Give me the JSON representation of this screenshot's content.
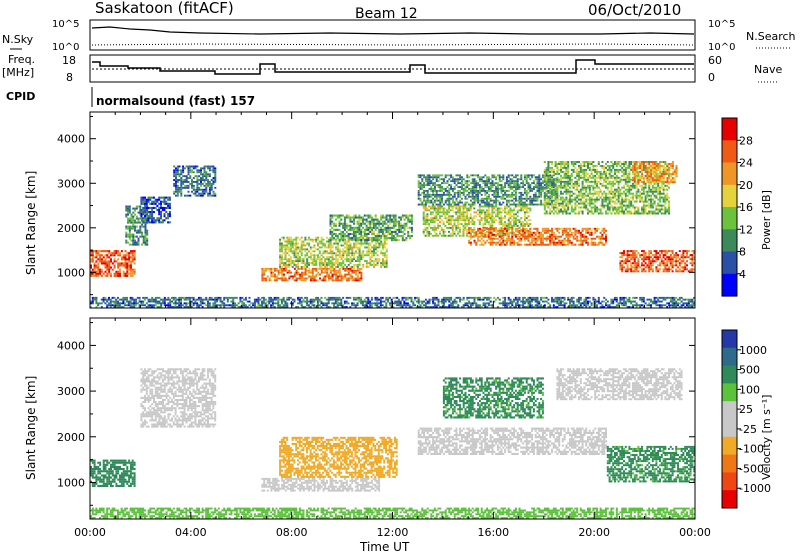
{
  "header": {
    "title": "Saskatoon (fitACF)",
    "beam": "Beam 12",
    "date": "06/Oct/2010"
  },
  "top_panels": {
    "nsky_label": "N.Sky",
    "nsky_ticks": [
      "10^5",
      "10^0"
    ],
    "nsearch_label": "N.Search",
    "nsearch_ticks": [
      "10^5",
      "10^0"
    ],
    "freq_label_1": "Freq.",
    "freq_label_2": "[MHz]",
    "freq_ticks": [
      "18",
      "8"
    ],
    "nave_label": "Nave",
    "nave_ticks": [
      "60",
      "0"
    ],
    "cpid_label": "CPID",
    "cpid_value": "normalsound (fast) 157"
  },
  "colors": {
    "power_scale": [
      "#0000ff",
      "#2a50a8",
      "#3c8a5a",
      "#6cc23c",
      "#e6d23c",
      "#f09628",
      "#f05a14",
      "#e60000"
    ],
    "velocity_scale": [
      "#2438a8",
      "#2e6a8c",
      "#2f8a5a",
      "#5cc23c",
      "#c8c8c8",
      "#c8c8c8",
      "#f0aa28",
      "#f07814",
      "#f04614",
      "#e60000"
    ]
  },
  "chart_data": [
    {
      "type": "heatmap",
      "title": "Power",
      "xlabel": "",
      "ylabel": "Slant Range [km]",
      "x_ticks": [
        "00:00",
        "04:00",
        "08:00",
        "12:00",
        "16:00",
        "20:00",
        "00:00"
      ],
      "y_ticks": [
        "1000",
        "2000",
        "3000",
        "4000"
      ],
      "ylim": [
        200,
        4600
      ],
      "colorbar_label": "Power [dB]",
      "colorbar_ticks": [
        "4",
        "8",
        "12",
        "16",
        "20",
        "24",
        "28"
      ],
      "regions": [
        {
          "t0": 0.0,
          "t1": 1.8,
          "r0": 900,
          "r1": 1500,
          "level": 26
        },
        {
          "t0": 1.4,
          "t1": 2.3,
          "r0": 1600,
          "r1": 2500,
          "level": 10
        },
        {
          "t0": 2.0,
          "t1": 3.2,
          "r0": 2100,
          "r1": 2700,
          "level": 6
        },
        {
          "t0": 3.3,
          "t1": 5.0,
          "r0": 2700,
          "r1": 3400,
          "level": 8
        },
        {
          "t0": 6.8,
          "t1": 10.8,
          "r0": 800,
          "r1": 1100,
          "level": 24
        },
        {
          "t0": 7.5,
          "t1": 11.8,
          "r0": 1100,
          "r1": 1800,
          "level": 16
        },
        {
          "t0": 9.5,
          "t1": 12.8,
          "r0": 1700,
          "r1": 2300,
          "level": 12
        },
        {
          "t0": 13.2,
          "t1": 17.5,
          "r0": 1800,
          "r1": 2500,
          "level": 16
        },
        {
          "t0": 15.0,
          "t1": 20.5,
          "r0": 1600,
          "r1": 2000,
          "level": 24
        },
        {
          "t0": 13.0,
          "t1": 18.5,
          "r0": 2500,
          "r1": 3200,
          "level": 10
        },
        {
          "t0": 18.0,
          "t1": 23.0,
          "r0": 2300,
          "r1": 3500,
          "level": 14
        },
        {
          "t0": 21.0,
          "t1": 24.0,
          "r0": 1000,
          "r1": 1500,
          "level": 26
        },
        {
          "t0": 21.5,
          "t1": 23.3,
          "r0": 3000,
          "r1": 3500,
          "level": 22
        },
        {
          "t0": 0.0,
          "t1": 24.0,
          "r0": 200,
          "r1": 450,
          "level": 8
        }
      ]
    },
    {
      "type": "heatmap",
      "title": "Velocity",
      "xlabel": "Time UT",
      "ylabel": "Slant Range [km]",
      "x_ticks": [
        "00:00",
        "04:00",
        "08:00",
        "12:00",
        "16:00",
        "20:00",
        "00:00"
      ],
      "y_ticks": [
        "1000",
        "2000",
        "3000",
        "4000"
      ],
      "ylim": [
        200,
        4600
      ],
      "colorbar_label": "Velocity [m s⁻¹]",
      "colorbar_ticks": [
        "1000",
        "500",
        "100",
        "25",
        "-25",
        "-100",
        "-500",
        "-1000"
      ],
      "regions": [
        {
          "t0": 0.0,
          "t1": 1.8,
          "r0": 900,
          "r1": 1500,
          "level": 200
        },
        {
          "t0": 2.0,
          "t1": 5.0,
          "r0": 2200,
          "r1": 3500,
          "level": 0
        },
        {
          "t0": 6.8,
          "t1": 11.5,
          "r0": 800,
          "r1": 1100,
          "level": 0
        },
        {
          "t0": 7.5,
          "t1": 12.2,
          "r0": 1100,
          "r1": 2000,
          "level": -300
        },
        {
          "t0": 13.0,
          "t1": 20.5,
          "r0": 1600,
          "r1": 2200,
          "level": 0
        },
        {
          "t0": 14.0,
          "t1": 18.0,
          "r0": 2400,
          "r1": 3300,
          "level": 150
        },
        {
          "t0": 18.5,
          "t1": 23.5,
          "r0": 2800,
          "r1": 3500,
          "level": 0
        },
        {
          "t0": 20.5,
          "t1": 24.0,
          "r0": 1000,
          "r1": 1800,
          "level": 150
        },
        {
          "t0": 0.0,
          "t1": 24.0,
          "r0": 200,
          "r1": 450,
          "level": 60
        }
      ]
    }
  ]
}
